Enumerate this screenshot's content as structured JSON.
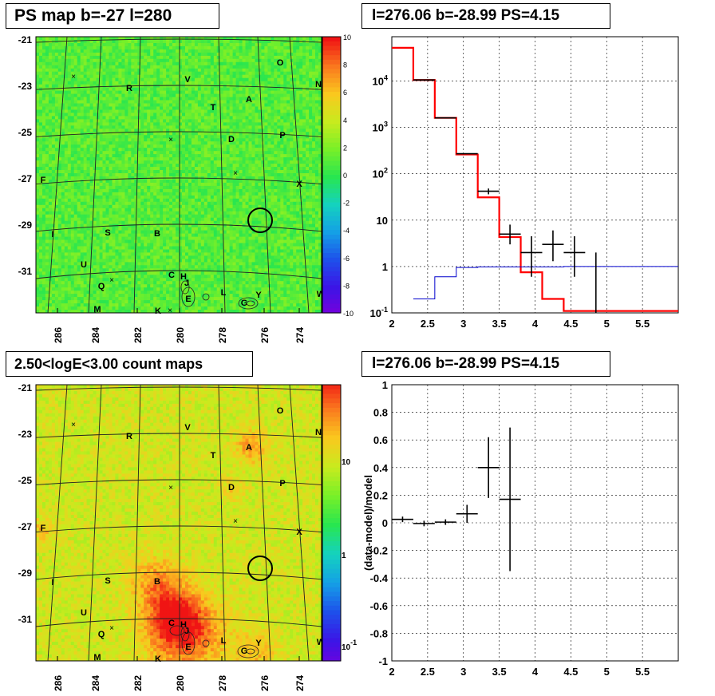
{
  "colors": {
    "map_green": "#2ee54a",
    "count_yellow": "#d8e85a",
    "hot": "#e8421c",
    "model_red": "#ff0000",
    "bg_blue": "#0000cc"
  },
  "panels": {
    "top_left": {
      "title": "PS map b=-27 l=280"
    },
    "top_right": {
      "title": "l=276.06 b=-28.99 PS=4.15"
    },
    "bottom_left": {
      "title": "2.50<logE<3.00 count maps"
    },
    "bottom_right": {
      "title": "l=276.06 b=-28.99 PS=4.15"
    }
  },
  "chart_data": [
    {
      "type": "heatmap",
      "title": "PS map b=-27 l=280",
      "x_ticks": [
        "286",
        "284",
        "282",
        "280",
        "278",
        "276",
        "274"
      ],
      "y_ticks": [
        "-21",
        "-23",
        "-25",
        "-27",
        "-29",
        "-31"
      ],
      "colorbar_ticks": [
        "10",
        "8",
        "6",
        "4",
        "2",
        "0",
        "-2",
        "-4",
        "-6",
        "-8",
        "-10"
      ],
      "zlim": [
        -10,
        10
      ],
      "source_labels": [
        "O",
        "N",
        "V",
        "R",
        "A",
        "T",
        "D",
        "P",
        "F",
        "X",
        "I",
        "S",
        "B",
        "U",
        "C",
        "H",
        "J",
        "Q",
        "E",
        "L",
        "Y",
        "G",
        "W",
        "M",
        "K"
      ],
      "marker": {
        "l": 276.06,
        "b": -28.99
      }
    },
    {
      "type": "line",
      "title": "l=276.06 b=-28.99 PS=4.15",
      "x_ticks": [
        "2",
        "2.5",
        "3",
        "3.5",
        "4",
        "4.5",
        "5",
        "5.5"
      ],
      "y_ticks": [
        "10^-1",
        "1",
        "10",
        "10^2",
        "10^3",
        "10^4"
      ],
      "xlim": [
        2,
        6
      ],
      "ylim": [
        0.1,
        90000
      ],
      "ylog": true,
      "grid": true,
      "data_points": [
        {
          "x": 2.45,
          "y": 10500,
          "xerr": 0.15
        },
        {
          "x": 2.75,
          "y": 1600,
          "xerr": 0.15
        },
        {
          "x": 3.05,
          "y": 270,
          "xerr": 0.15
        },
        {
          "x": 3.35,
          "y": 42,
          "xerr": 0.15,
          "ylo": 36,
          "yhi": 48
        },
        {
          "x": 3.65,
          "y": 5,
          "xerr": 0.15,
          "ylo": 3,
          "yhi": 8
        },
        {
          "x": 3.95,
          "y": 2,
          "xerr": 0.15,
          "ylo": 0.6,
          "yhi": 4.5
        },
        {
          "x": 4.25,
          "y": 3,
          "xerr": 0.15,
          "ylo": 1.3,
          "yhi": 6
        },
        {
          "x": 4.55,
          "y": 2,
          "xerr": 0.15,
          "ylo": 0.6,
          "yhi": 4.5
        },
        {
          "x": 4.85,
          "y": 1,
          "xerr": 0,
          "ylo": 0.1,
          "yhi": 2
        }
      ],
      "model_total": [
        {
          "x0": 2.0,
          "x1": 2.3,
          "y": 52000
        },
        {
          "x0": 2.3,
          "x1": 2.6,
          "y": 10500
        },
        {
          "x0": 2.6,
          "x1": 2.9,
          "y": 1600
        },
        {
          "x0": 2.9,
          "x1": 3.2,
          "y": 260
        },
        {
          "x0": 3.2,
          "x1": 3.5,
          "y": 31
        },
        {
          "x0": 3.5,
          "x1": 3.8,
          "y": 4.3
        },
        {
          "x0": 3.8,
          "x1": 4.1,
          "y": 0.75
        },
        {
          "x0": 4.1,
          "x1": 4.4,
          "y": 0.2
        },
        {
          "x0": 4.4,
          "x1": 6.0,
          "y": 0.11
        }
      ],
      "model_background": [
        {
          "x0": 2.3,
          "x1": 2.6,
          "y": 0.2
        },
        {
          "x0": 2.6,
          "x1": 2.9,
          "y": 0.6
        },
        {
          "x0": 2.9,
          "x1": 3.2,
          "y": 0.95
        },
        {
          "x0": 3.2,
          "x1": 4.4,
          "y": 0.98
        },
        {
          "x0": 4.4,
          "x1": 6.0,
          "y": 1.0
        }
      ]
    },
    {
      "type": "heatmap",
      "title": "2.50<logE<3.00 count maps",
      "x_ticks": [
        "286",
        "284",
        "282",
        "280",
        "278",
        "276",
        "274"
      ],
      "y_ticks": [
        "-21",
        "-23",
        "-25",
        "-27",
        "-29",
        "-31"
      ],
      "colorbar_ticks": [
        "10",
        "1",
        "10^-1"
      ],
      "zlog": true
    },
    {
      "type": "scatter",
      "title": "l=276.06 b=-28.99 PS=4.15",
      "ylabel": "(data-model)/model",
      "x_ticks": [
        "2",
        "2.5",
        "3",
        "3.5",
        "4",
        "4.5",
        "5",
        "5.5"
      ],
      "y_ticks": [
        "1",
        "0.8",
        "0.6",
        "0.4",
        "0.2",
        "0",
        "-0.2",
        "-0.4",
        "-0.6",
        "-0.8",
        "-1"
      ],
      "xlim": [
        2,
        6
      ],
      "ylim": [
        -1,
        1
      ],
      "grid": true,
      "points": [
        {
          "x": 2.15,
          "y": 0.025,
          "xerr": 0.15,
          "yerr": 0.02
        },
        {
          "x": 2.45,
          "y": -0.005,
          "xerr": 0.15,
          "yerr": 0.02
        },
        {
          "x": 2.75,
          "y": 0.005,
          "xerr": 0.15,
          "yerr": 0.02
        },
        {
          "x": 3.05,
          "y": 0.065,
          "xerr": 0.15,
          "yerr": 0.065
        },
        {
          "x": 3.35,
          "y": 0.4,
          "xerr": 0.15,
          "yerr": 0.22
        },
        {
          "x": 3.65,
          "y": 0.17,
          "xerr": 0.15,
          "yerr": 0.52
        }
      ]
    }
  ]
}
